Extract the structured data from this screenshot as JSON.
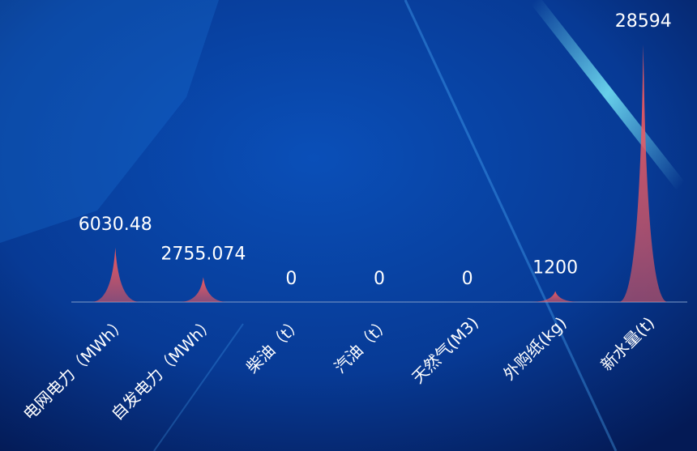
{
  "chart_data": {
    "type": "pictorial-bar",
    "categories": [
      "电网电力（MWh）",
      "自发电力（MWh）",
      "柴油（t）",
      "汽油（t）",
      "天然气(M3)",
      "外购纸(kg)",
      "新水量(t)"
    ],
    "values": [
      6030.48,
      2755.074,
      0,
      0,
      0,
      1200,
      28594
    ],
    "color": "#f05a5f"
  }
}
